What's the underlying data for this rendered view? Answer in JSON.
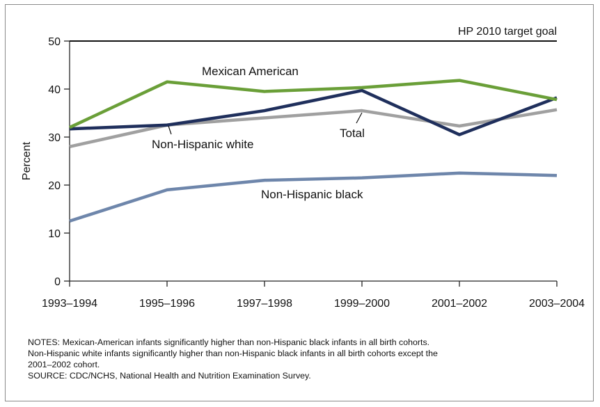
{
  "chart_data": {
    "type": "line",
    "categories": [
      "1993–1994",
      "1995–1996",
      "1997–1998",
      "1999–2000",
      "2001–2002",
      "2003–2004"
    ],
    "ylabel": "Percent",
    "xlabel": "",
    "ylim": [
      0,
      50
    ],
    "yticks": [
      0,
      10,
      20,
      30,
      40,
      50
    ],
    "grid": false,
    "target": {
      "label": "HP 2010 target goal",
      "value": 50
    },
    "series": [
      {
        "name": "Total",
        "color": "#a0a0a0",
        "values": [
          28.0,
          32.5,
          34.0,
          35.5,
          32.3,
          35.7
        ]
      },
      {
        "name": "Non-Hispanic black",
        "color": "#6e86ab",
        "values": [
          12.5,
          19.0,
          21.0,
          21.5,
          22.5,
          22.0
        ]
      },
      {
        "name": "Non-Hispanic  white",
        "color": "#1f2f5c",
        "values": [
          31.7,
          32.5,
          35.5,
          39.7,
          30.5,
          38.2
        ]
      },
      {
        "name": "Mexican American",
        "color": "#6a9f38",
        "values": [
          32.0,
          41.5,
          39.5,
          40.3,
          41.8,
          37.8
        ]
      }
    ]
  },
  "notes": {
    "line1": "NOTES: Mexican-American infants significantly higher than non-Hispanic black infants in all birth cohorts.",
    "line2": "Non-Hispanic white infants significantly higher than non-Hispanic black infants in all birth cohorts except the",
    "line3": "2001–2002 cohort.",
    "source": "SOURCE: CDC/NCHS, National Health and Nutrition Examination Survey."
  }
}
